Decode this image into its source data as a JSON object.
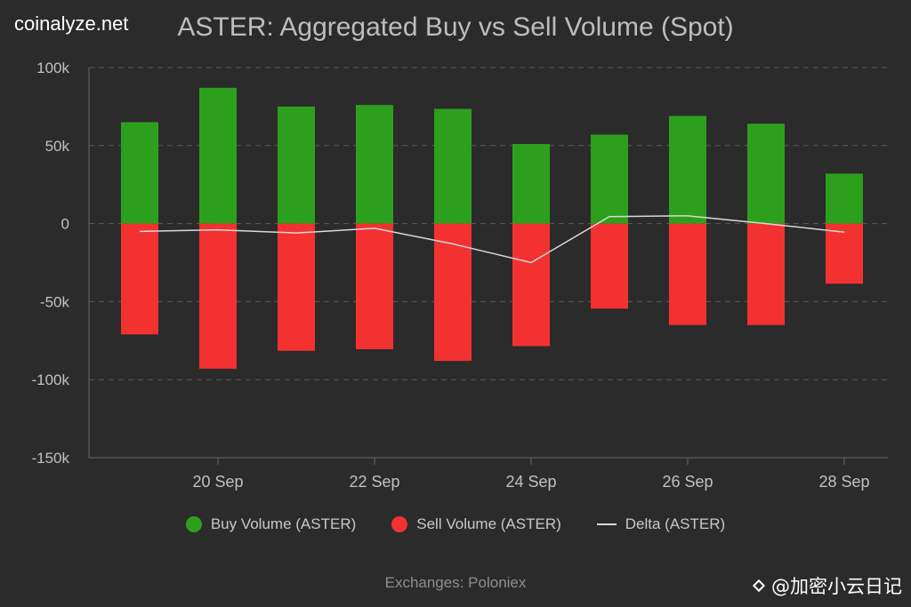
{
  "brand": "coinalyze.net",
  "colors": {
    "background": "#2b2b2b",
    "buy": "#2ca01c",
    "sell": "#f43131",
    "delta": "#d9d9d9",
    "grid": "#5a5a5a"
  },
  "legend": {
    "buy": "Buy Volume (ASTER)",
    "sell": "Sell Volume (ASTER)",
    "delta": "Delta (ASTER)"
  },
  "footer": "Exchanges: Poloniex",
  "watermark": "@加密小云日记",
  "chart_data": {
    "type": "bar",
    "title": "ASTER: Aggregated Buy vs Sell Volume (Spot)",
    "categories": [
      "19 Sep",
      "20 Sep",
      "21 Sep",
      "22 Sep",
      "23 Sep",
      "24 Sep",
      "25 Sep",
      "26 Sep",
      "27 Sep",
      "28 Sep"
    ],
    "x_tick_labels": [
      "20 Sep",
      "22 Sep",
      "24 Sep",
      "26 Sep",
      "28 Sep"
    ],
    "series": [
      {
        "name": "Buy Volume (ASTER)",
        "type": "bar",
        "color": "#2ca01c",
        "values": [
          65000,
          87000,
          75000,
          76000,
          73500,
          51000,
          57000,
          69000,
          64000,
          32000
        ]
      },
      {
        "name": "Sell Volume (ASTER)",
        "type": "bar",
        "color": "#f43131",
        "values": [
          -71000,
          -93000,
          -81500,
          -80500,
          -88000,
          -78500,
          -54500,
          -65000,
          -65000,
          -38500
        ]
      },
      {
        "name": "Delta (ASTER)",
        "type": "line",
        "color": "#d9d9d9",
        "values": [
          -5000,
          -4000,
          -6000,
          -3000,
          -13000,
          -25000,
          4500,
          5000,
          0,
          -5500
        ]
      }
    ],
    "y_ticks": [
      100000,
      50000,
      0,
      -50000,
      -100000,
      -150000
    ],
    "y_tick_labels": [
      "100k",
      "50k",
      "0",
      "-50k",
      "-100k",
      "-150k"
    ],
    "ylim": [
      -150000,
      100000
    ],
    "grid": true,
    "legend_position": "bottom"
  }
}
